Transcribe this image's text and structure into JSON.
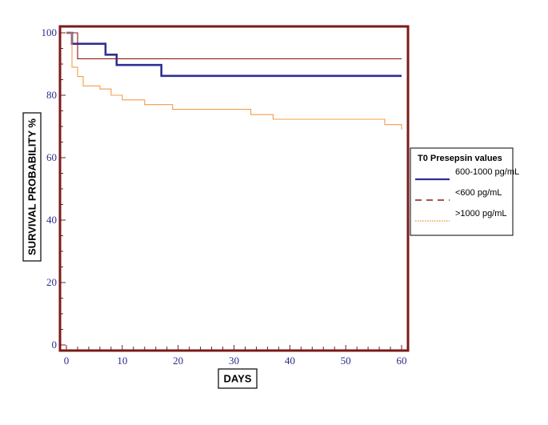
{
  "chart_data": {
    "type": "line",
    "subtype": "kaplan-meier step",
    "xlabel": "DAYS",
    "ylabel": "SURVIVAL PROBABILITY %",
    "xlim": [
      0,
      60
    ],
    "ylim": [
      0,
      100
    ],
    "x_ticks": [
      0,
      10,
      20,
      30,
      40,
      50,
      60
    ],
    "y_ticks": [
      0,
      20,
      40,
      60,
      80,
      100
    ],
    "grid": false,
    "legend": {
      "title": "T0 Presepsin values",
      "placement": "right"
    },
    "series": [
      {
        "name": "600-1000 pg/mL",
        "color": "#2e3192",
        "line_style": "solid",
        "points": [
          [
            0,
            100
          ],
          [
            1,
            100
          ],
          [
            1,
            96.5
          ],
          [
            7,
            96.5
          ],
          [
            7,
            93
          ],
          [
            9,
            93
          ],
          [
            9,
            89.7
          ],
          [
            17,
            89.7
          ],
          [
            17,
            86.2
          ],
          [
            60,
            86.2
          ]
        ]
      },
      {
        "name": "<600 pg/mL",
        "color": "#8b1a1a",
        "line_style": "dashed",
        "points": [
          [
            0,
            100
          ],
          [
            2,
            100
          ],
          [
            2,
            91.7
          ],
          [
            60,
            91.7
          ]
        ]
      },
      {
        "name": ">1000 pg/mL",
        "color": "#f39c4b",
        "line_style": "dotted",
        "points": [
          [
            0,
            100
          ],
          [
            1,
            100
          ],
          [
            1,
            89
          ],
          [
            2,
            89
          ],
          [
            2,
            86
          ],
          [
            3,
            86
          ],
          [
            3,
            83
          ],
          [
            6,
            83
          ],
          [
            6,
            82
          ],
          [
            8,
            82
          ],
          [
            8,
            80
          ],
          [
            10,
            80
          ],
          [
            10,
            78.5
          ],
          [
            14,
            78.5
          ],
          [
            14,
            77
          ],
          [
            19,
            77
          ],
          [
            19,
            75.5
          ],
          [
            33,
            75.5
          ],
          [
            33,
            73.8
          ],
          [
            37,
            73.8
          ],
          [
            37,
            72.3
          ],
          [
            57,
            72.3
          ],
          [
            57,
            70.6
          ],
          [
            60,
            70.6
          ],
          [
            60,
            69
          ]
        ]
      }
    ]
  }
}
